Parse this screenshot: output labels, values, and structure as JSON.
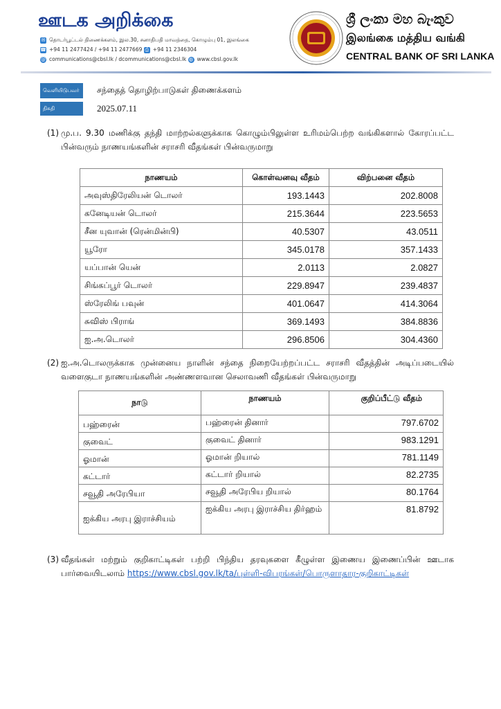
{
  "header": {
    "title": "ஊடக அறிக்கை",
    "address": "தொடர்பூட்டல் திணைக்களம், இல.30, சனாதிபதி மாவத்தை, கொழும்பு 01, இலங்கை",
    "phone": "+94 11 2477424 / +94 11 2477669",
    "fax": "+94 11 2346304",
    "email": "communications@cbsl.lk / dcommunications@cbsl.lk",
    "website": "www.cbsl.gov.lk",
    "bank_sinhala": "ශ්‍රී ලංකා මහ බැංකුව",
    "bank_tamil": "இலங்கை மத்திய வங்கி",
    "bank_english": "CENTRAL BANK OF SRI LANKA",
    "colors": {
      "brand": "#1c3f95",
      "label_box": "#2e75b6"
    }
  },
  "meta": {
    "publisher_label": "வெளியிடுபவர்",
    "publisher": "சந்தைத் தொழிற்பாடுகள் திணைக்களம்",
    "date_label": "திகதி",
    "date": "2025.07.11"
  },
  "section1": {
    "num": "(1)",
    "text": "மு.ப. 9.30 மணிக்கு தந்தி மாற்றல்களுக்காக கொழும்பிலுள்ள உரிமம்பெற்ற வங்கிகளால் கோரப்பட்ட பின்வரும் நாணயங்களின் சராசரி வீதங்கள் பின்வருமாறு",
    "headers": [
      "நாணயம்",
      "கொள்வனவு வீதம்",
      "விற்பனை வீதம்"
    ],
    "rows": [
      [
        "அவுஸ்திரேலியன் டொலர்",
        "193.1443",
        "202.8008"
      ],
      [
        "கனேடியன் டொலர்",
        "215.3644",
        "223.5653"
      ],
      [
        "சீன யுவான் (ரென்மின்பி)",
        "40.5307",
        "43.0511"
      ],
      [
        "யூரோ",
        "345.0178",
        "357.1433"
      ],
      [
        "யப்பான் யென்",
        "2.0113",
        "2.0827"
      ],
      [
        "சிங்கப்பூர் டொலர்",
        "229.8947",
        "239.4837"
      ],
      [
        "ஸ்ரேலிங் பவுன்",
        "401.0647",
        "414.3064"
      ],
      [
        "சுவிஸ் பிராங்",
        "369.1493",
        "384.8836"
      ],
      [
        "ஐ.அ.டொலர்",
        "296.8506",
        "304.4360"
      ]
    ]
  },
  "section2": {
    "num": "(2)",
    "text": "ஐ.அ.டொலருக்காக முன்னைய நாளின் சந்தை நிறையேற்றப்பட்ட சராசரி வீதத்தின் அடிப்படையில் வளைகுடா நாணயங்களின் அண்ணளவான செலாவணி வீதங்கள் பின்வருமாறு",
    "headers": [
      "நாடு",
      "நாணயம்",
      "குறிப்பீட்டு வீதம்"
    ],
    "rows": [
      [
        "பஹ்ரைன்",
        "பஹ்ரைன் தினார்",
        "797.6702"
      ],
      [
        "குவைட்",
        "குவைட் தினார்",
        "983.1291"
      ],
      [
        "ஓமான்",
        "ஓமான் றியால்",
        "781.1149"
      ],
      [
        "கட்டார்",
        "கட்டார் றியால்",
        "82.2735"
      ],
      [
        "சவூதி அரேபியா",
        "சவூதி அரேபிய றியால்",
        "80.1764"
      ],
      [
        "ஐக்கிய அரபு இராச்சியம்",
        "ஐக்கிய அரபு இராச்சிய திர்ஹம்",
        "81.8792"
      ]
    ]
  },
  "section3": {
    "num": "(3)",
    "text": "வீதங்கள் மற்றும் குறிகாட்டிகள் பற்றி பிந்திய தரவுகளை கீழுள்ள இணைய இணைப்பின் ஊடாக பார்வையிடலாம்",
    "link": "https://www.cbsl.gov.lk/ta/புள்ளி-விபரங்கள்/பொருளாதார-குறிகாட்டிகள்"
  }
}
